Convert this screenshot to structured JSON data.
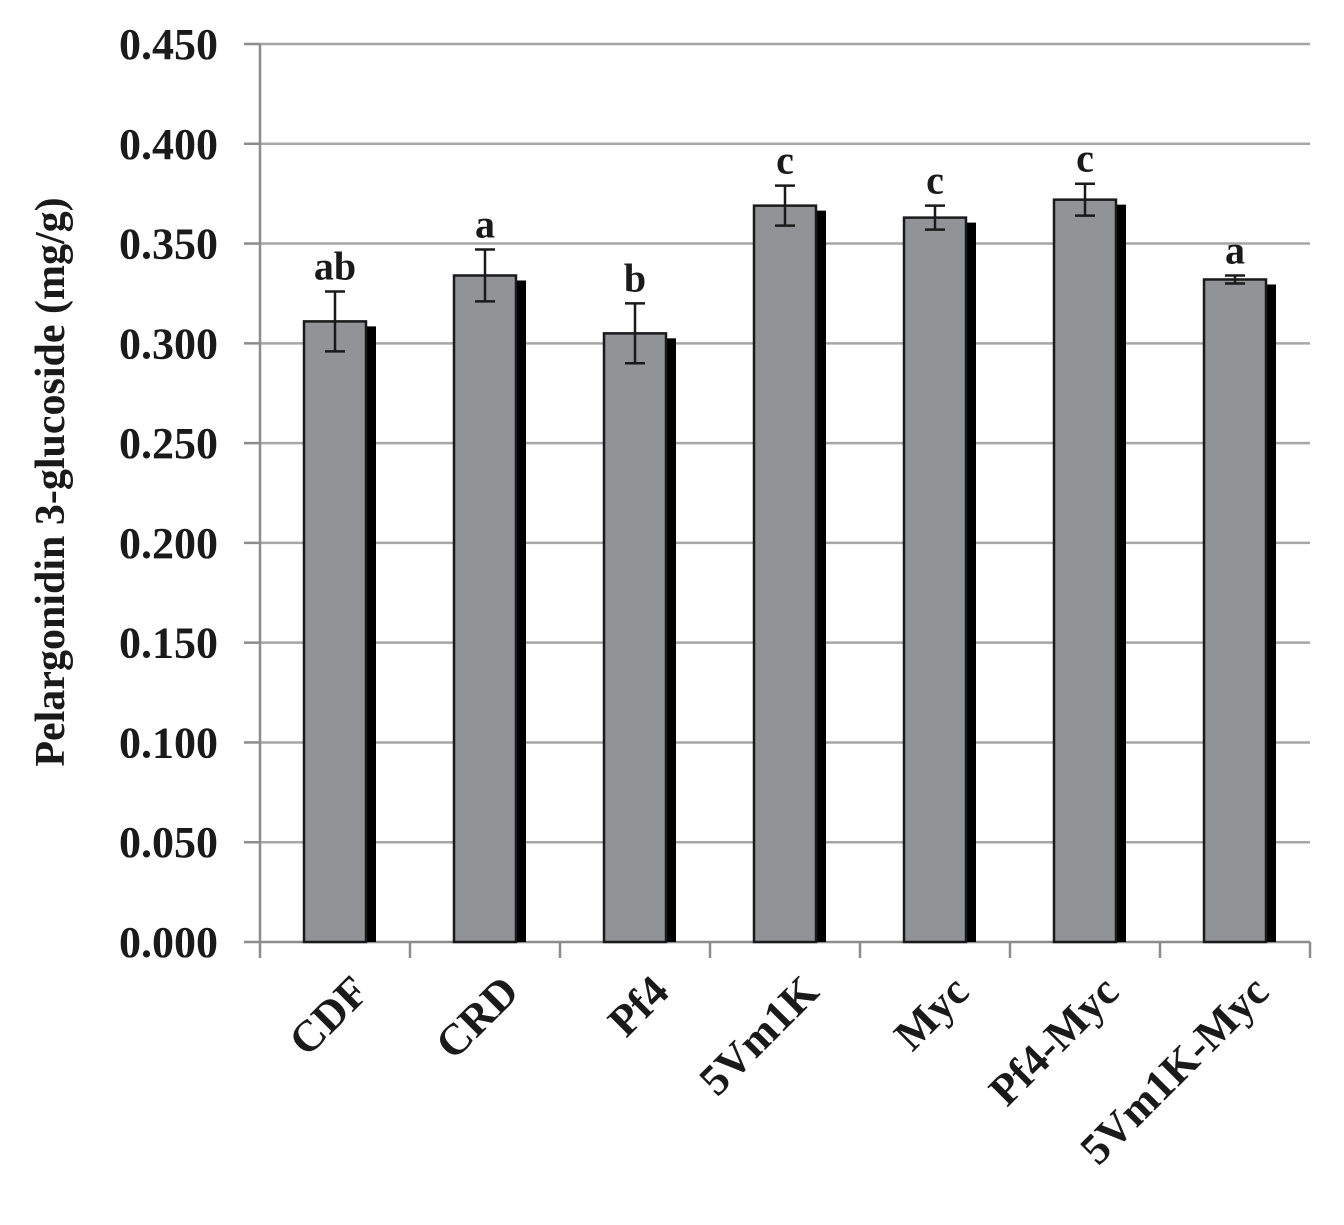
{
  "chart_data": {
    "type": "bar",
    "title": "",
    "xlabel": "",
    "ylabel": "Pelargonidin 3-glucoside (mg/g)",
    "ylim": [
      0,
      0.45
    ],
    "ytick_step": 0.05,
    "ytick_labels": [
      "0.000",
      "0.050",
      "0.100",
      "0.150",
      "0.200",
      "0.250",
      "0.300",
      "0.350",
      "0.400",
      "0.450"
    ],
    "grid": true,
    "categories": [
      "CDF",
      "CRD",
      "Pf4",
      "5Vm1K",
      "Myc",
      "Pf4-Myc",
      "5Vm1K-Myc"
    ],
    "values": [
      0.311,
      0.334,
      0.305,
      0.369,
      0.363,
      0.372,
      0.332
    ],
    "errors": [
      0.015,
      0.013,
      0.015,
      0.01,
      0.006,
      0.008,
      0.002
    ],
    "significance_labels": [
      "ab",
      "a",
      "b",
      "c",
      "c",
      "c",
      "a"
    ],
    "colors": {
      "bar_fill": "#929397",
      "bar_shadow": "#000000",
      "bar_outline": "#1a1a1a",
      "gridline": "#a6a6a6",
      "axis": "#8c8c8c",
      "text": "#1a1a1a"
    }
  }
}
